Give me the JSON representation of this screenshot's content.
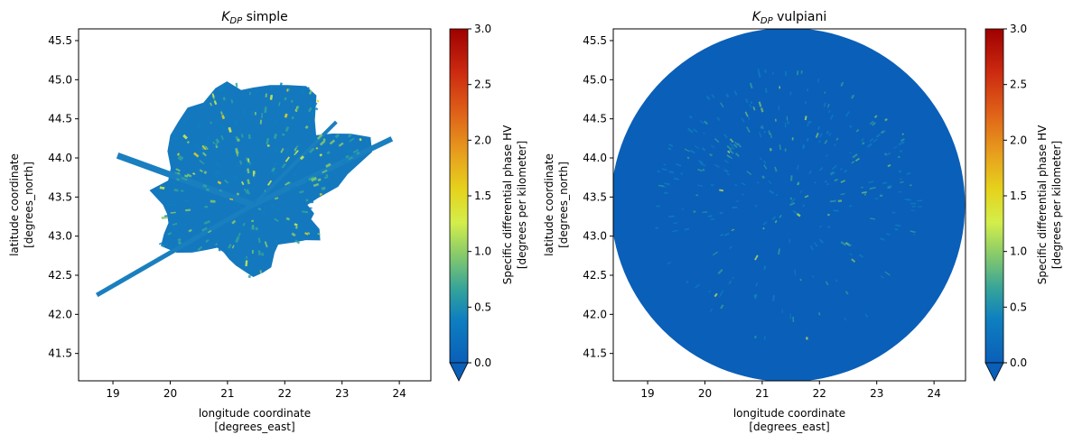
{
  "chart_data": [
    {
      "type": "heatmap",
      "title_base": "K",
      "title_sub": "DP",
      "title_rest": " simple",
      "xlabel_line1": "longitude coordinate",
      "xlabel_line2": "[degrees_east]",
      "ylabel_line1": "latitude coordinate",
      "ylabel_line2": "[degrees_north]",
      "xlim": [
        18.4,
        24.55
      ],
      "ylim": [
        41.15,
        45.65
      ],
      "xticks": [
        "19",
        "20",
        "21",
        "22",
        "23",
        "24"
      ],
      "yticks": [
        "41.5",
        "42.0",
        "42.5",
        "43.0",
        "43.5",
        "44.0",
        "44.5",
        "45.0",
        "45.5"
      ],
      "colorbar": {
        "label_line1": "Specific differential phase HV",
        "label_line2": "[degrees per kilometer]",
        "min": 0.0,
        "max": 3.0,
        "ticks": [
          "0.0",
          "0.5",
          "1.0",
          "1.5",
          "2.0",
          "2.5",
          "3.0"
        ],
        "extend": "min"
      },
      "radar_center": [
        21.45,
        43.4
      ],
      "coverage": "partial",
      "background_value": 0.1
    },
    {
      "type": "heatmap",
      "title_base": "K",
      "title_sub": "DP",
      "title_rest": " vulpiani",
      "xlabel_line1": "longitude coordinate",
      "xlabel_line2": "[degrees_east]",
      "ylabel_line1": "latitude coordinate",
      "ylabel_line2": "[degrees_north]",
      "xlim": [
        18.4,
        24.55
      ],
      "ylim": [
        41.15,
        45.65
      ],
      "xticks": [
        "19",
        "20",
        "21",
        "22",
        "23",
        "24"
      ],
      "yticks": [
        "41.5",
        "42.0",
        "42.5",
        "43.0",
        "43.5",
        "44.0",
        "44.5",
        "45.0",
        "45.5"
      ],
      "colorbar": {
        "label_line1": "Specific differential phase HV",
        "label_line2": "[degrees per kilometer]",
        "min": 0.0,
        "max": 3.0,
        "ticks": [
          "0.0",
          "0.5",
          "1.0",
          "1.5",
          "2.0",
          "2.5",
          "3.0"
        ],
        "extend": "min"
      },
      "radar_center": [
        21.45,
        43.4
      ],
      "coverage": "full-circle",
      "background_value": 0.0
    }
  ],
  "colors": {
    "low": "#0a6bc4",
    "cyan": "#2aa3a6",
    "green": "#7cc66a",
    "yellow": "#e9e83a",
    "orange": "#e5922a",
    "red": "#c5130f",
    "dark_red": "#9e0000"
  }
}
